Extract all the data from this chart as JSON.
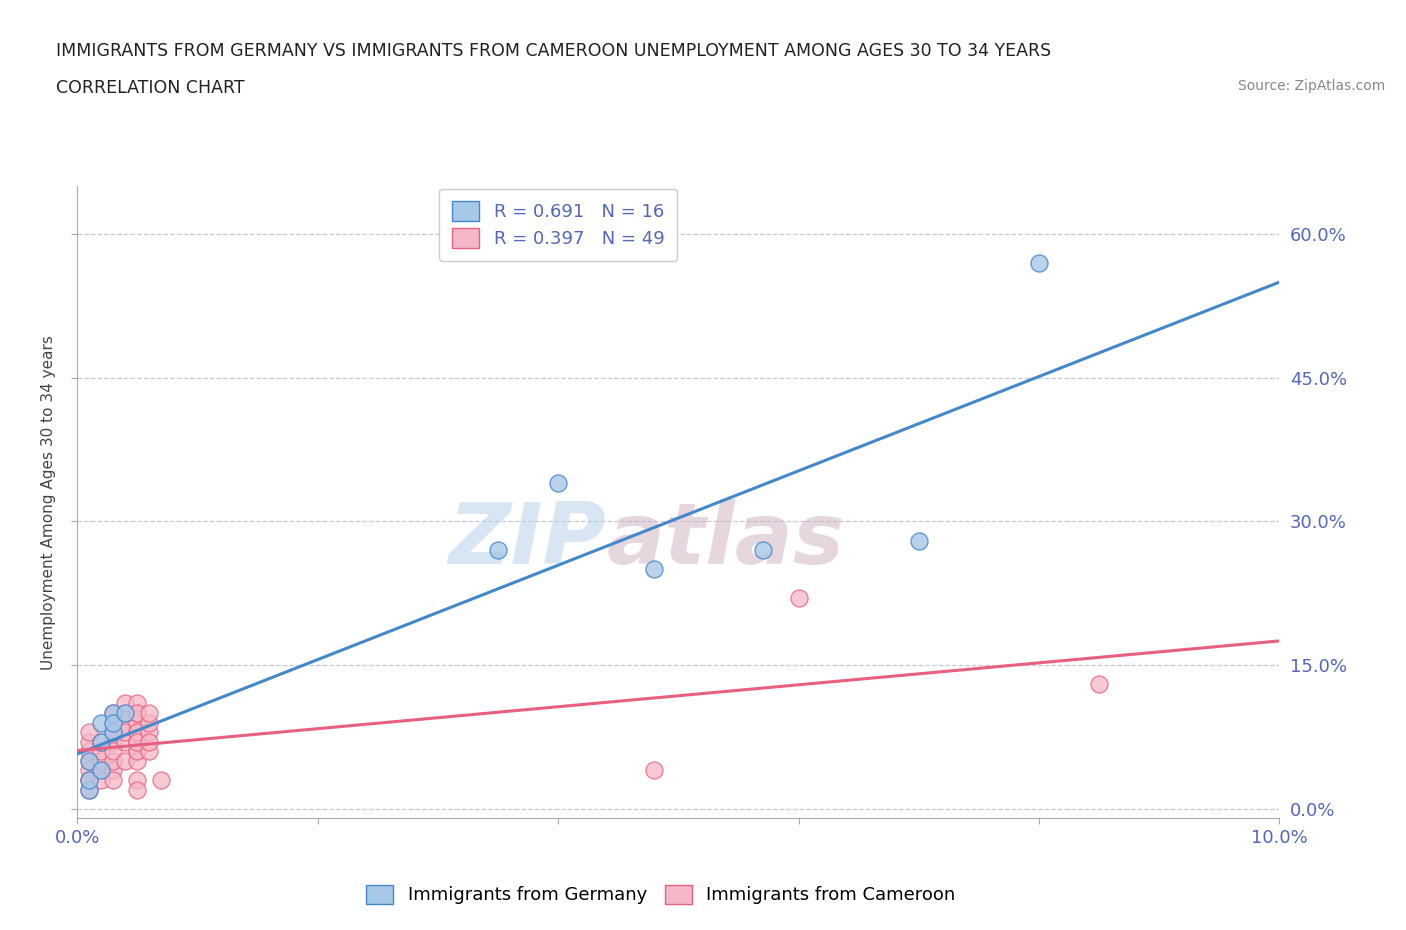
{
  "title_line1": "IMMIGRANTS FROM GERMANY VS IMMIGRANTS FROM CAMEROON UNEMPLOYMENT AMONG AGES 30 TO 34 YEARS",
  "title_line2": "CORRELATION CHART",
  "source_text": "Source: ZipAtlas.com",
  "ylabel": "Unemployment Among Ages 30 to 34 years",
  "legend_germany": "Immigrants from Germany",
  "legend_cameroon": "Immigrants from Cameroon",
  "R_germany": 0.691,
  "N_germany": 16,
  "R_cameroon": 0.397,
  "N_cameroon": 49,
  "color_germany": "#a8c8e8",
  "color_cameroon": "#f4b8c8",
  "line_color_germany": "#4488cc",
  "line_color_cameroon": "#e86080",
  "watermark_zip": "ZIP",
  "watermark_atlas": "atlas",
  "germany_x": [
    0.001,
    0.001,
    0.001,
    0.002,
    0.002,
    0.002,
    0.003,
    0.003,
    0.003,
    0.004,
    0.035,
    0.04,
    0.048,
    0.057,
    0.07,
    0.08
  ],
  "germany_y": [
    0.02,
    0.03,
    0.05,
    0.04,
    0.07,
    0.09,
    0.08,
    0.1,
    0.09,
    0.1,
    0.27,
    0.34,
    0.25,
    0.27,
    0.28,
    0.57
  ],
  "cameroon_x": [
    0.001,
    0.001,
    0.001,
    0.001,
    0.001,
    0.001,
    0.001,
    0.001,
    0.002,
    0.002,
    0.002,
    0.002,
    0.002,
    0.003,
    0.003,
    0.003,
    0.003,
    0.003,
    0.003,
    0.003,
    0.003,
    0.004,
    0.004,
    0.004,
    0.004,
    0.004,
    0.004,
    0.005,
    0.005,
    0.005,
    0.005,
    0.005,
    0.005,
    0.005,
    0.005,
    0.005,
    0.005,
    0.005,
    0.005,
    0.005,
    0.006,
    0.006,
    0.006,
    0.006,
    0.006,
    0.007,
    0.048,
    0.06,
    0.085
  ],
  "cameroon_y": [
    0.03,
    0.04,
    0.05,
    0.06,
    0.07,
    0.08,
    0.03,
    0.02,
    0.04,
    0.05,
    0.06,
    0.07,
    0.03,
    0.04,
    0.05,
    0.07,
    0.08,
    0.09,
    0.1,
    0.06,
    0.03,
    0.05,
    0.07,
    0.09,
    0.1,
    0.11,
    0.08,
    0.06,
    0.07,
    0.08,
    0.09,
    0.1,
    0.11,
    0.1,
    0.05,
    0.06,
    0.08,
    0.07,
    0.03,
    0.02,
    0.08,
    0.09,
    0.06,
    0.07,
    0.1,
    0.03,
    0.04,
    0.22,
    0.13
  ],
  "xlim": [
    0.0,
    0.1
  ],
  "ylim": [
    -0.01,
    0.65
  ],
  "yticks": [
    0.0,
    0.15,
    0.3,
    0.45,
    0.6
  ],
  "ytick_labels": [
    "0.0%",
    "15.0%",
    "30.0%",
    "45.0%",
    "60.0%"
  ],
  "xticks": [
    0.0,
    0.02,
    0.04,
    0.06,
    0.08,
    0.1
  ],
  "xtick_labels": [
    "0.0%",
    "",
    "",
    "",
    "",
    "10.0%"
  ],
  "background_color": "#ffffff",
  "grid_color": "#c8c8d8",
  "tick_color": "#5566bb"
}
